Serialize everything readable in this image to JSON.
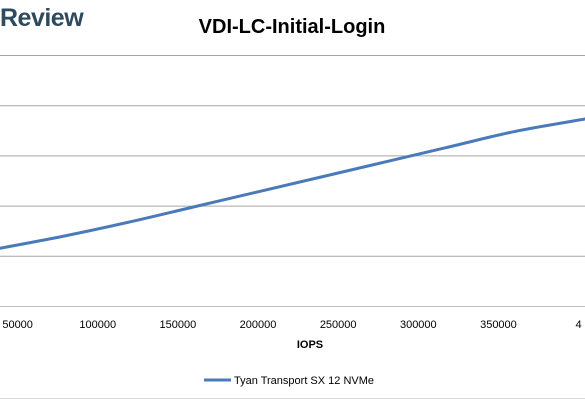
{
  "brand": {
    "text": "Review"
  },
  "chart_data": {
    "type": "line",
    "title": "VDI-LC-Initial-Login",
    "xlabel": "IOPS",
    "ylabel": "",
    "x_ticks": [
      "50000",
      "100000",
      "150000",
      "200000",
      "250000",
      "300000",
      "350000",
      "4"
    ],
    "xlim": [
      39000,
      404000
    ],
    "grid": true,
    "legend_position": "bottom",
    "series": [
      {
        "name": "Tyan Transport SX 12 NVMe",
        "color": "#4a7ab8",
        "x": [
          39000,
          80000,
          120000,
          160000,
          200000,
          240000,
          280000,
          320000,
          360000,
          404000
        ],
        "y": [
          0.23,
          0.28,
          0.335,
          0.395,
          0.455,
          0.515,
          0.575,
          0.635,
          0.695,
          0.745
        ]
      }
    ]
  }
}
